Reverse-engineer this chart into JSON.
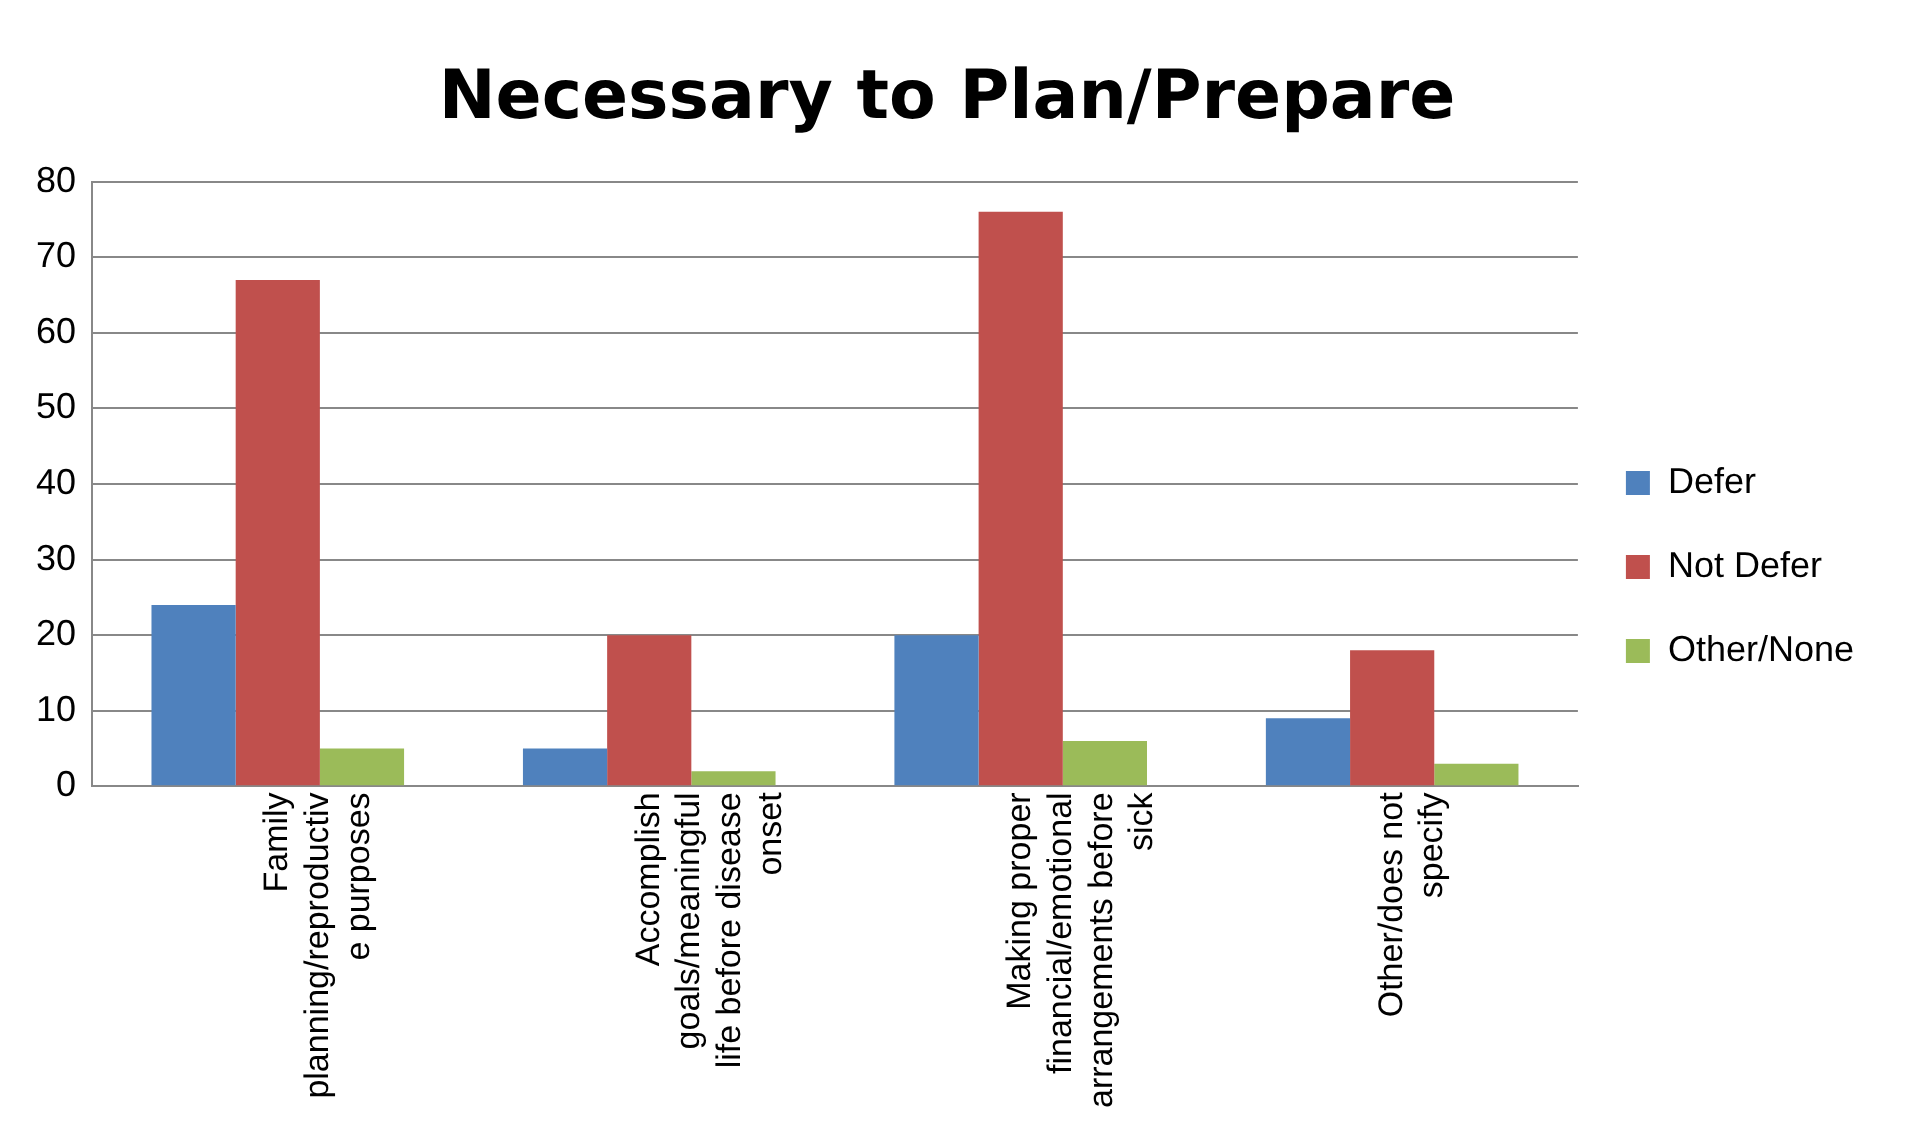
{
  "chart_data": {
    "type": "bar",
    "title": "Necessary to Plan/Prepare",
    "categories": [
      "Family planning/reproductive purposes",
      "Accomplish goals/meaningful life before disease onset",
      "Making proper financial/emotional arrangements before sick",
      "Other/does not specify"
    ],
    "series": [
      {
        "name": "Defer",
        "color": "#4f81bd",
        "values": [
          24,
          5,
          20,
          9
        ]
      },
      {
        "name": "Not Defer",
        "color": "#c0504d",
        "values": [
          67,
          20,
          76,
          18
        ]
      },
      {
        "name": "Other/None",
        "color": "#9bbb59",
        "values": [
          5,
          2,
          6,
          3
        ]
      }
    ],
    "ylim": [
      0,
      80
    ],
    "yticks": [
      0,
      10,
      20,
      30,
      40,
      50,
      60,
      70,
      80
    ],
    "grid": "y",
    "legend": "right"
  }
}
